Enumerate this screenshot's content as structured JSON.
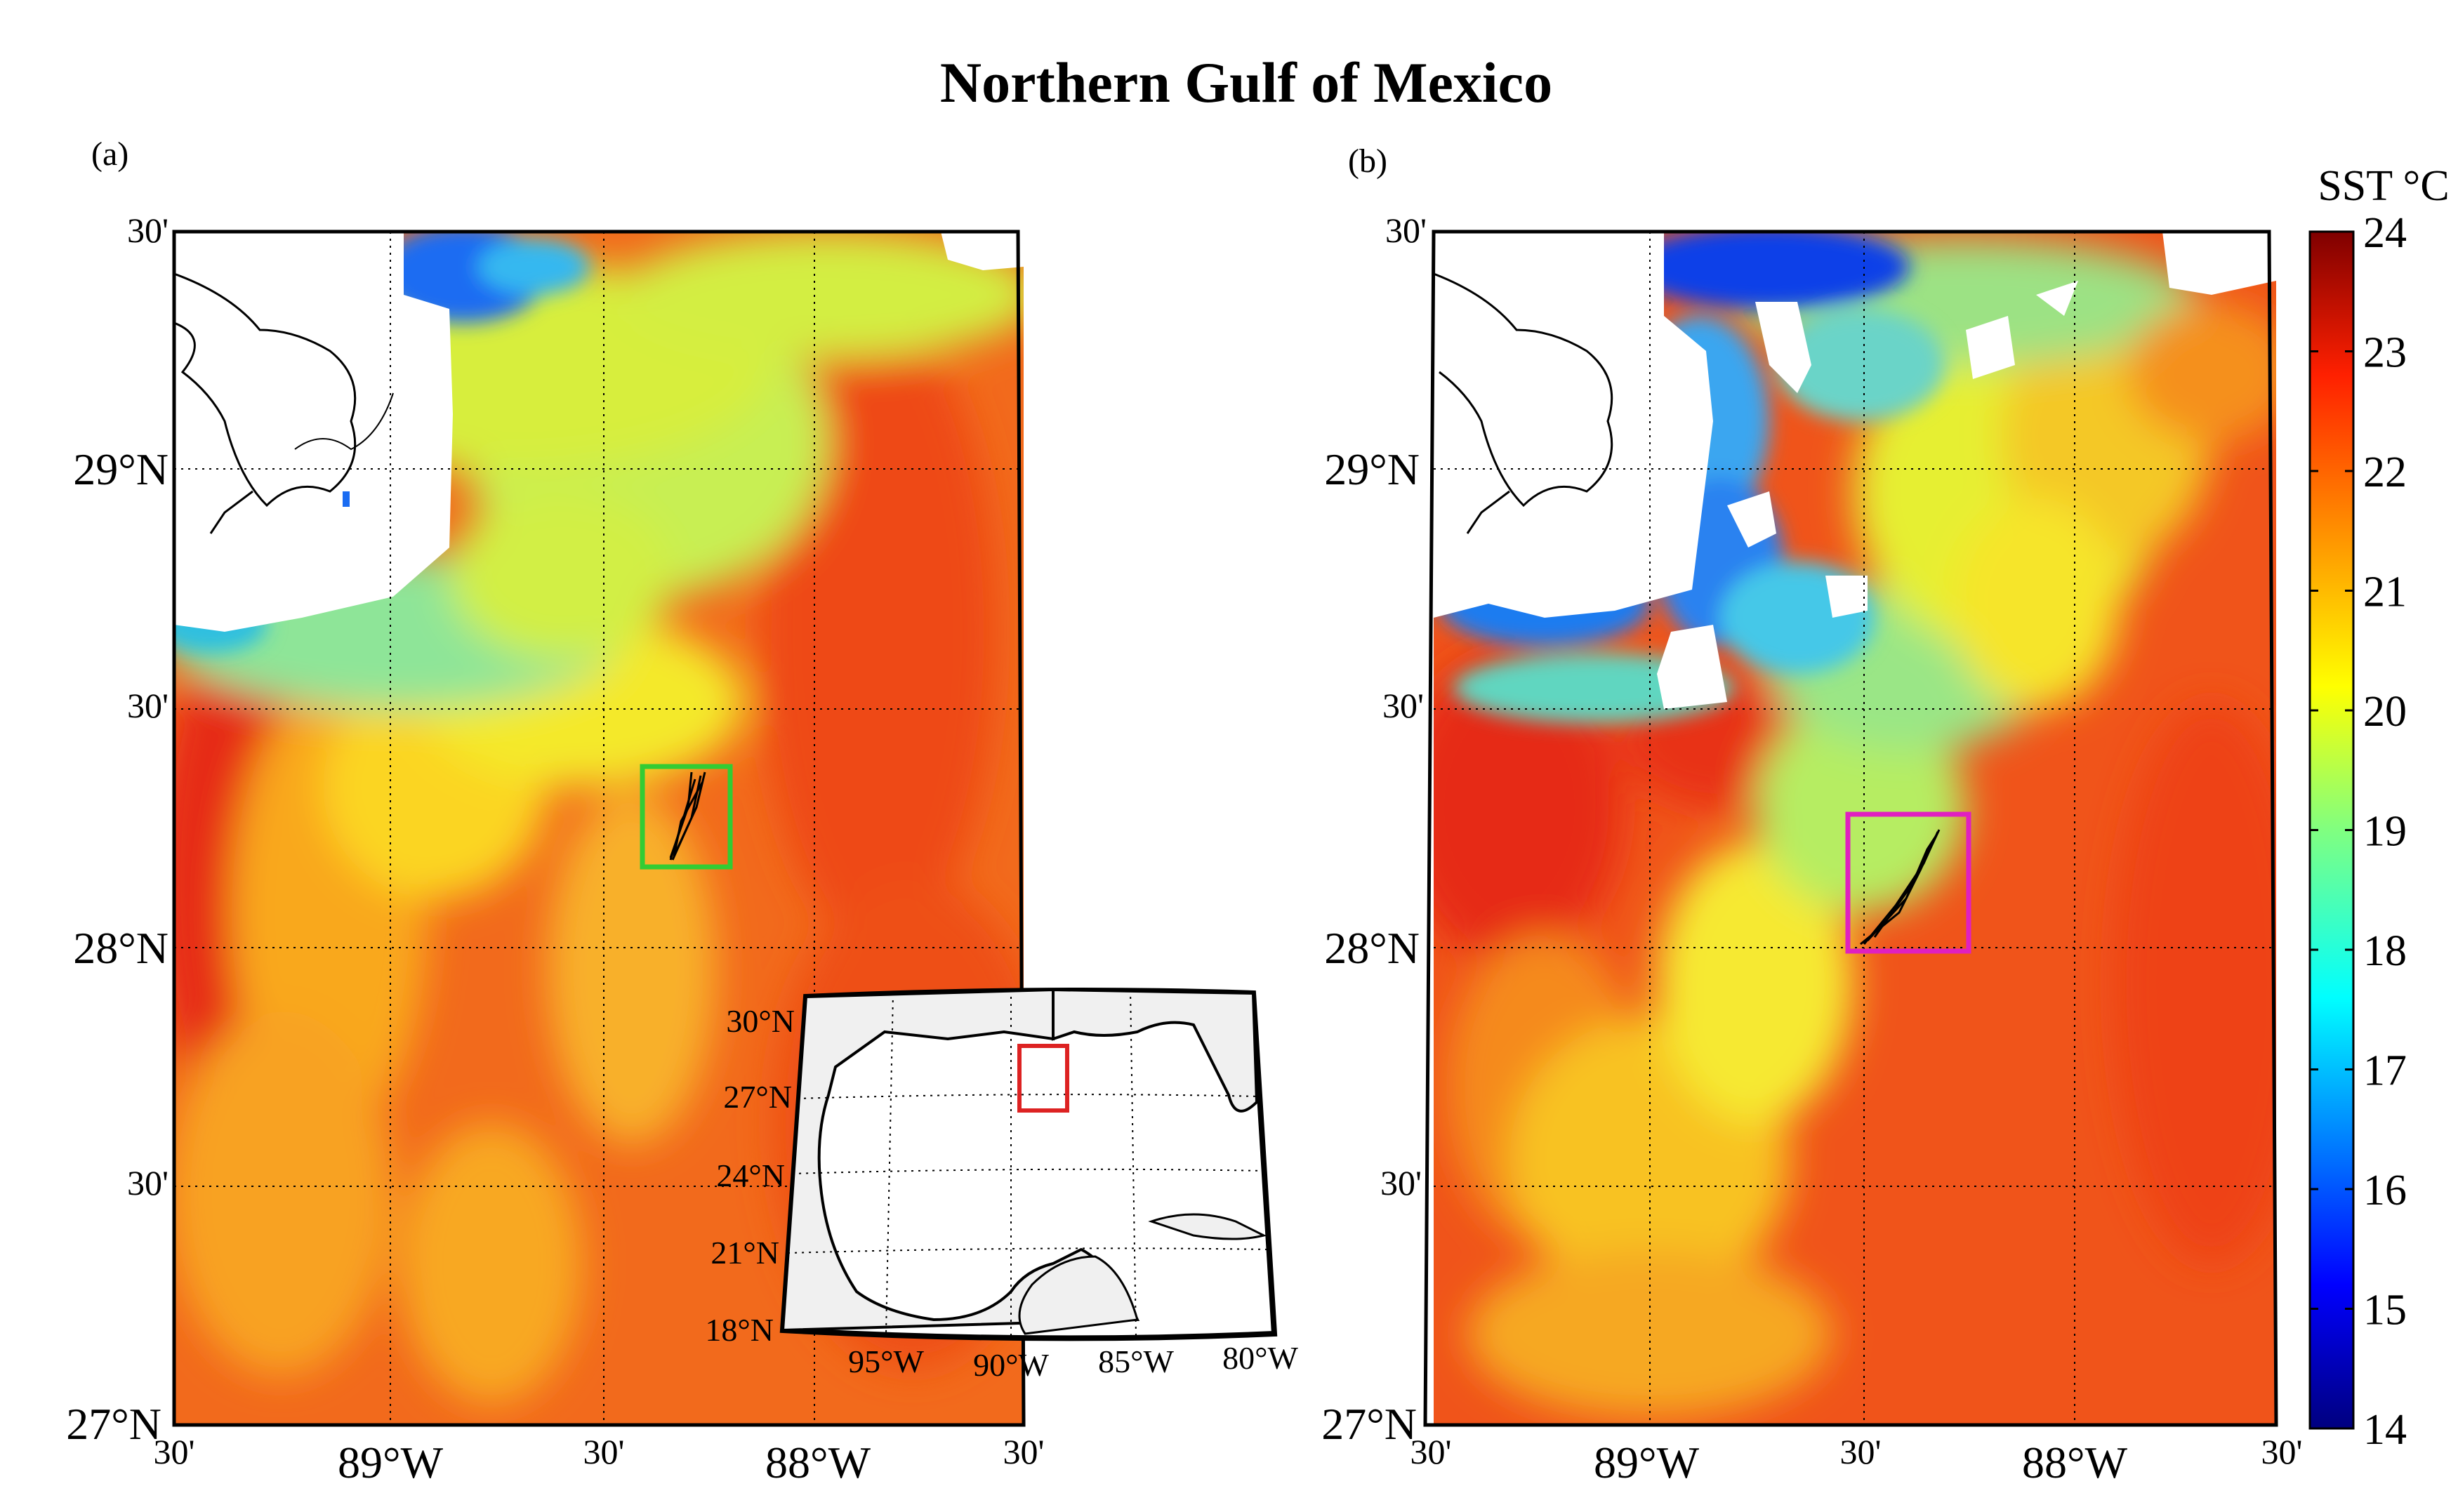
{
  "title": "Northern Gulf of Mexico",
  "panels": [
    {
      "label": "(a)",
      "lat_labels": [
        "30'",
        "29°N",
        "30'",
        "28°N",
        "30'",
        "27°N"
      ],
      "lon_labels": [
        "30'",
        "89°W",
        "30'",
        "88°W",
        "30'"
      ],
      "box_color": "#33cc33"
    },
    {
      "label": "(b)",
      "lat_labels": [
        "30'",
        "29°N",
        "30'",
        "28°N",
        "30'",
        "27°N"
      ],
      "lon_labels": [
        "30'",
        "89°W",
        "30'",
        "88°W",
        "30'"
      ],
      "box_color": "#e020c0"
    }
  ],
  "inset": {
    "lat_labels": [
      "30°N",
      "27°N",
      "24°N",
      "21°N",
      "18°N"
    ],
    "lon_labels": [
      "95°W",
      "90°W",
      "85°W",
      "80°W"
    ],
    "box_color": "#dd2222"
  },
  "colorbar": {
    "label": "SST °C",
    "ticks": [
      "24",
      "23",
      "22",
      "21",
      "20",
      "19",
      "18",
      "17",
      "16",
      "15",
      "14"
    ],
    "min": 14,
    "max": 24
  }
}
